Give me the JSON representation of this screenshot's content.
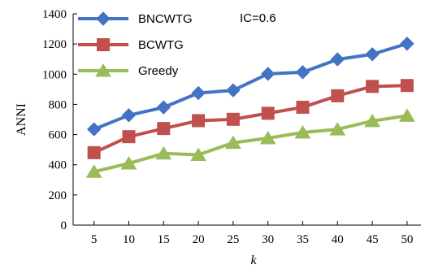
{
  "chart_data": {
    "type": "line",
    "x": [
      5,
      10,
      15,
      20,
      25,
      30,
      35,
      40,
      45,
      50
    ],
    "xlabel": "k",
    "ylabel": "ANNI",
    "xlim": [
      2,
      52
    ],
    "ylim": [
      0,
      1400
    ],
    "yticks": [
      0,
      200,
      400,
      600,
      800,
      1000,
      1200,
      1400
    ],
    "grid": false,
    "legend_position": "top-left",
    "annotation": "IC=0.6",
    "series": [
      {
        "name": "BNCWTG",
        "marker": "diamond",
        "color": "#4472c4",
        "values": [
          635,
          728,
          780,
          875,
          893,
          1002,
          1013,
          1098,
          1132,
          1202
        ]
      },
      {
        "name": "BCWTG",
        "marker": "square",
        "color": "#c0504d",
        "values": [
          480,
          586,
          640,
          692,
          701,
          741,
          781,
          857,
          919,
          925
        ]
      },
      {
        "name": "Greedy",
        "marker": "triangle",
        "color": "#9bbb59",
        "values": [
          354,
          409,
          475,
          466,
          546,
          576,
          614,
          635,
          690,
          725
        ]
      }
    ]
  }
}
